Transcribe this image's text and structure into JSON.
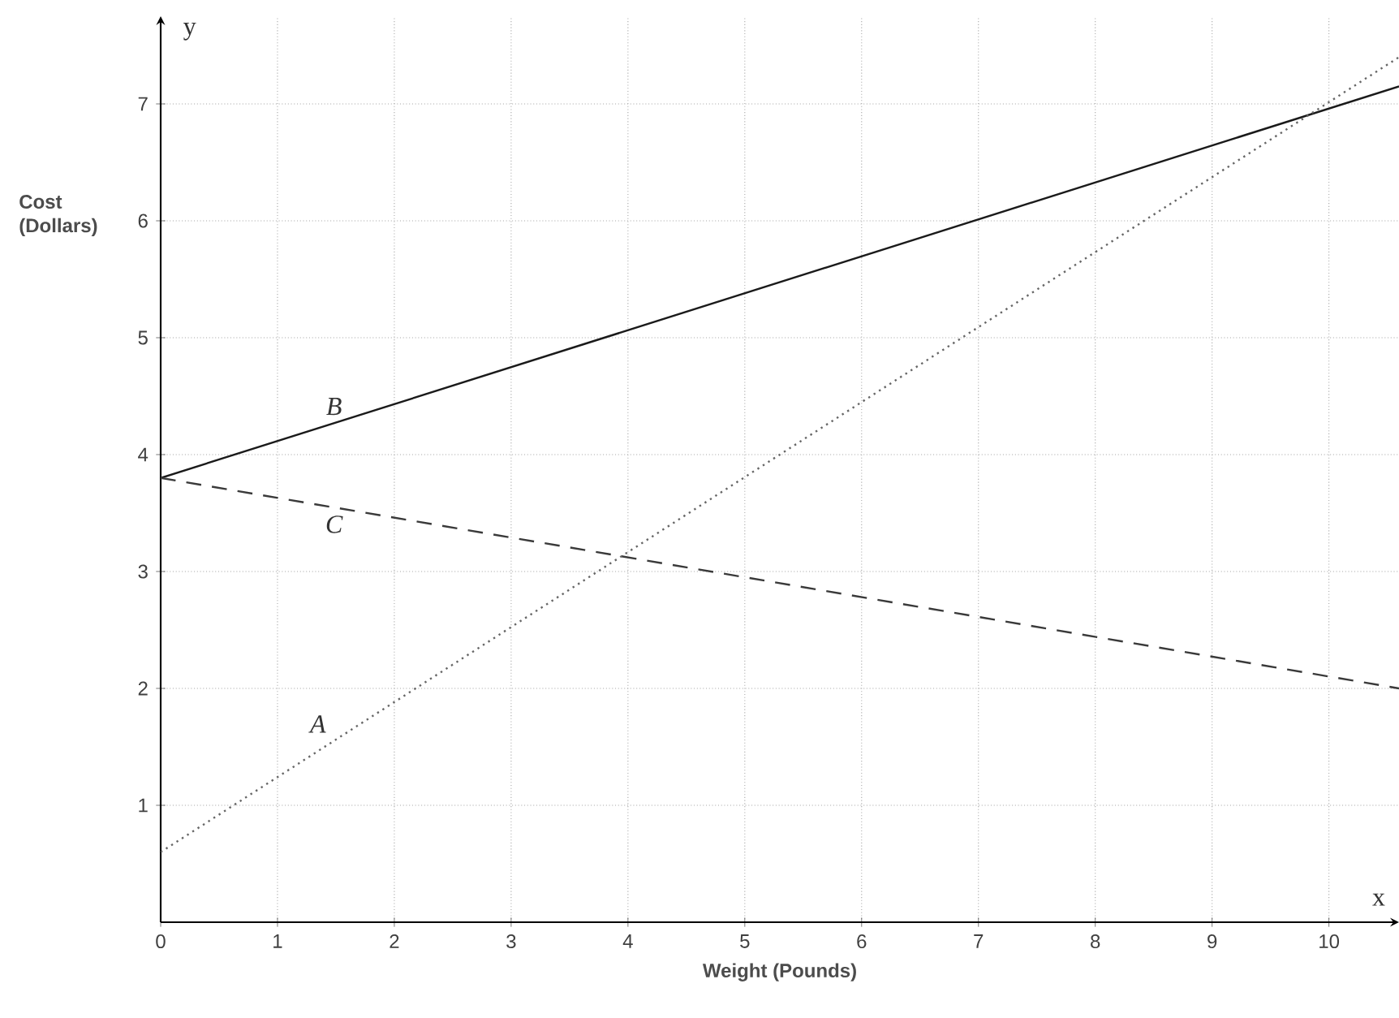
{
  "chart_data": {
    "type": "line",
    "xlabel": "Weight (Pounds)",
    "ylabel": "Cost (Dollars)",
    "xlim": [
      0,
      10.6
    ],
    "ylim": [
      0,
      7.75
    ],
    "xticks": [
      0,
      1,
      2,
      3,
      4,
      5,
      6,
      7,
      8,
      9,
      10
    ],
    "yticks": [
      1,
      2,
      3,
      4,
      5,
      6,
      7
    ],
    "grid": true,
    "marker": "none",
    "x": [
      0,
      10.6
    ],
    "series": [
      {
        "name": "B",
        "color": "#1a1a1a",
        "line_style": "solid",
        "values": [
          3.8,
          7.15
        ]
      },
      {
        "name": "C",
        "color": "#3a3a3a",
        "line_style": "dashed",
        "values": [
          3.8,
          2.0
        ]
      },
      {
        "name": "A",
        "color": "#666666",
        "line_style": "dotted",
        "values": [
          0.6,
          7.4
        ]
      }
    ],
    "annotations": [
      "x",
      "y"
    ]
  }
}
